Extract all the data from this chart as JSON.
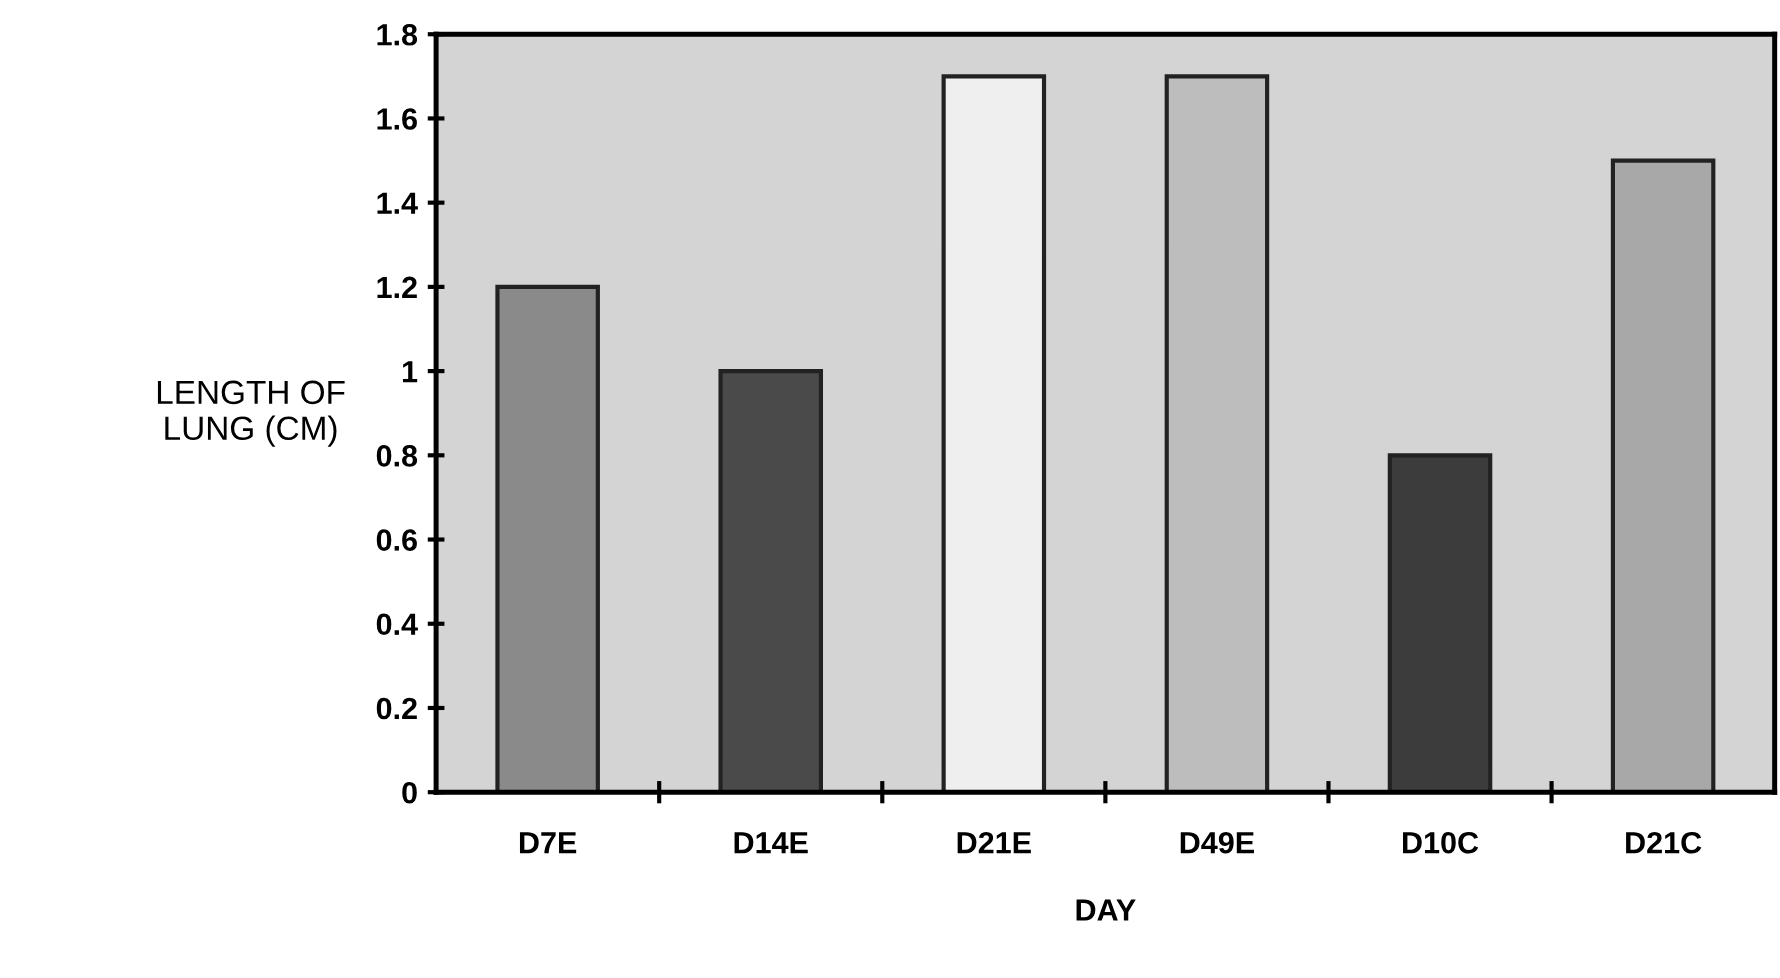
{
  "chart_data": {
    "type": "bar",
    "xlabel": "DAY",
    "ylabel": "LENGTH OF\nLUNG (CM)",
    "categories": [
      "D7E",
      "D14E",
      "D21E",
      "D49E",
      "D10C",
      "D21C"
    ],
    "values": [
      1.2,
      1.0,
      1.7,
      1.7,
      0.8,
      1.5
    ],
    "colors": [
      "#8a8a8a",
      "#4a4a4a",
      "#efefef",
      "#bdbdbd",
      "#3c3c3c",
      "#a8a8a8"
    ],
    "ylim": [
      0,
      1.8
    ],
    "yticks": [
      0,
      0.2,
      0.4,
      0.6,
      0.8,
      1,
      1.2,
      1.4,
      1.6,
      1.8
    ],
    "grid": false,
    "legend": false
  }
}
